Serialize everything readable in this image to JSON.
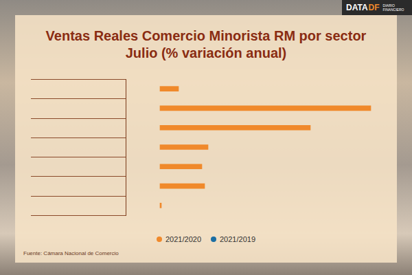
{
  "chart_data": {
    "type": "bar",
    "orientation": "horizontal",
    "title": "Ventas Reales Comercio Minorista RM por sector",
    "subtitle": "Julio (% variación anual)",
    "source": "Fuente: Cámara Nacional de Comercio",
    "logo": [
      "DATA",
      "DF",
      "DIARIO FINANCIERO"
    ],
    "categories": [
      null,
      null,
      null,
      null,
      null,
      null,
      null
    ],
    "series": [
      {
        "name": "2021/2020",
        "color": "#f0892b",
        "values": [
          13.5,
          153.5,
          109.5,
          35,
          30.5,
          32.5,
          1
        ]
      },
      {
        "name": "2021/2019",
        "color": "#1b6ea3",
        "values": [
          null,
          null,
          null,
          null,
          null,
          null,
          null
        ]
      }
    ],
    "xlim": [
      -25,
      160
    ],
    "tick_labels": false,
    "grid": true,
    "legend": "bottom"
  }
}
